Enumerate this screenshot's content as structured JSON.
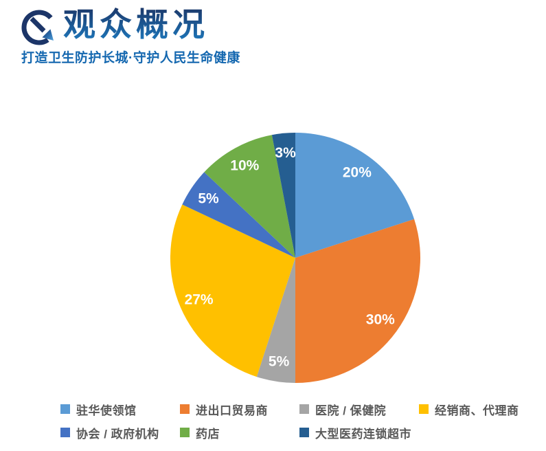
{
  "header": {
    "title": "观众概况",
    "subtitle": "打造卫生防护长城·守护人民生命健康",
    "logo_icon": "circle-arrow-down-right-icon"
  },
  "colors": {
    "title_gradient_top": "#1C2F5E",
    "title_gradient_bottom": "#1D7CC2",
    "subtitle_text": "#1568B0",
    "legend_text": "#595959",
    "pie_label_text": "#FFFFFF",
    "background": "#FFFFFF"
  },
  "chart_data": {
    "type": "pie",
    "title": "观众概况",
    "unit": "percent",
    "start_angle_deg": 0,
    "direction": "clockwise",
    "legend_position": "bottom",
    "data_labels_shown": true,
    "series": [
      {
        "label": "驻华使领馆",
        "value": 20,
        "color": "#5B9BD5",
        "data_label": "20%"
      },
      {
        "label": "进出口贸易商",
        "value": 30,
        "color": "#ED7D31",
        "data_label": "30%"
      },
      {
        "label": "医院 / 保健院",
        "value": 5,
        "color": "#A5A5A5",
        "data_label": "5%"
      },
      {
        "label": "经销商、代理商",
        "value": 27,
        "color": "#FFC000",
        "data_label": "27%"
      },
      {
        "label": "协会 / 政府机构",
        "value": 5,
        "color": "#4472C4",
        "data_label": "5%"
      },
      {
        "label": "药店",
        "value": 10,
        "color": "#70AD47",
        "data_label": "10%"
      },
      {
        "label": "大型医药连锁超市",
        "value": 3,
        "color": "#255E91",
        "data_label": "3%"
      }
    ]
  }
}
